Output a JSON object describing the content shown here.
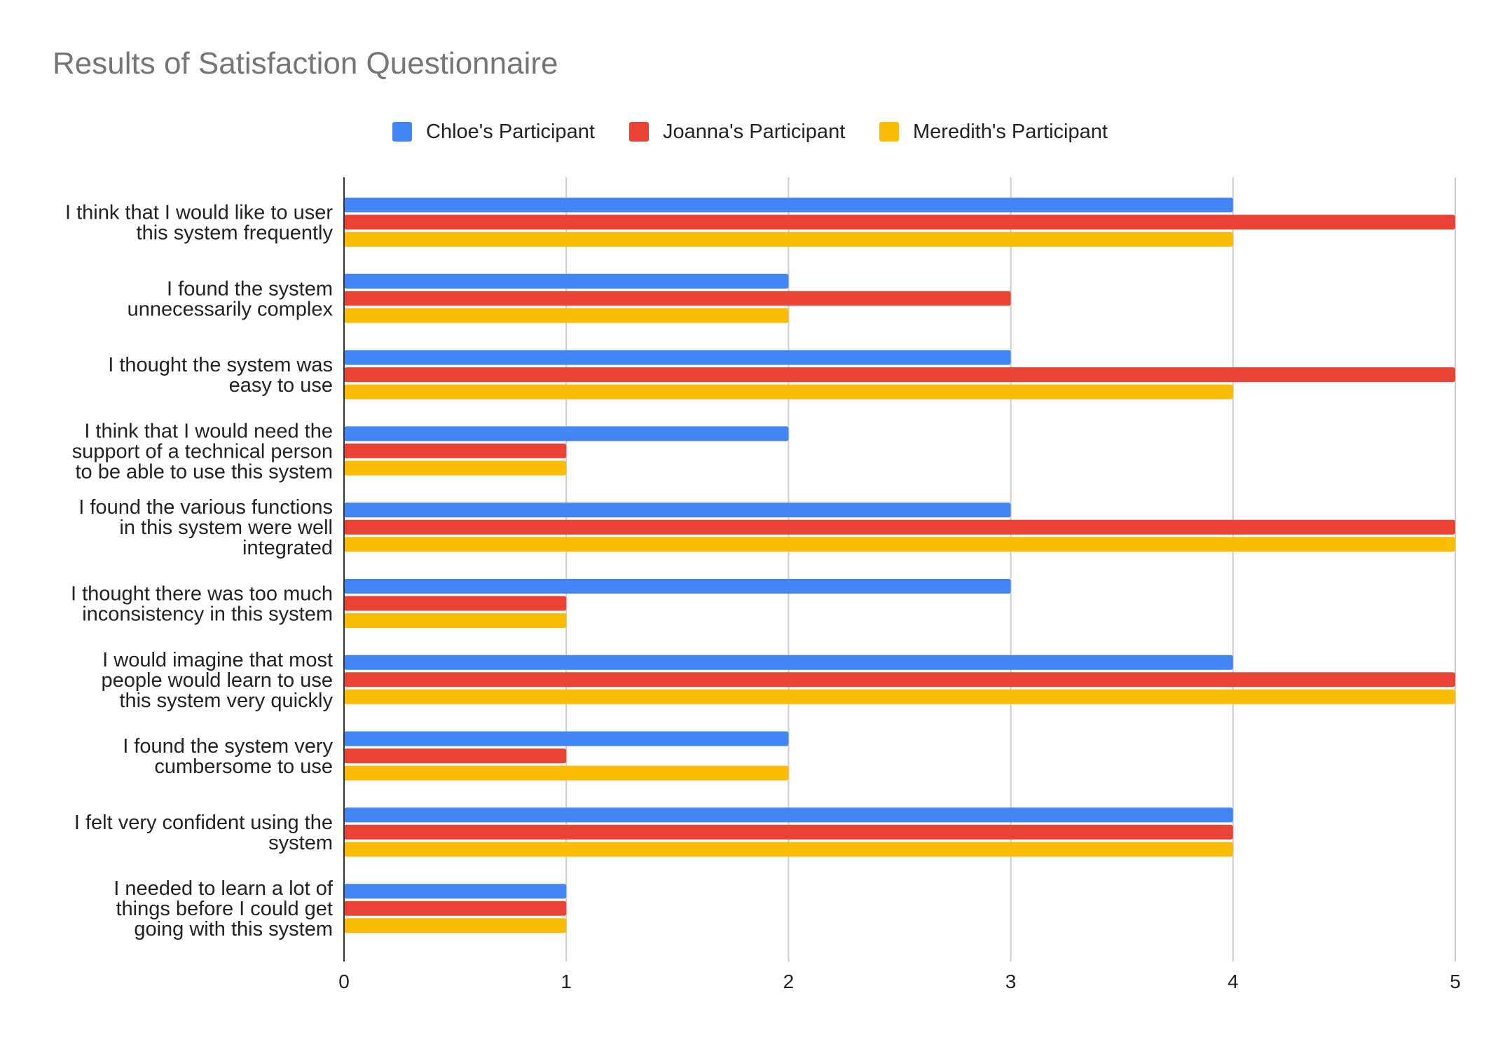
{
  "chart_data": {
    "type": "bar",
    "orientation": "horizontal",
    "title": "Results of Satisfaction Questionnaire",
    "xlabel": "",
    "ylabel": "",
    "xlim": [
      0,
      5
    ],
    "xticks": [
      "0",
      "1",
      "2",
      "3",
      "4",
      "5"
    ],
    "grid": "vertical",
    "legend_position": "top",
    "categories": [
      [
        "I think that I would like to user",
        "this system frequently"
      ],
      [
        "I found the system",
        "unnecessarily complex"
      ],
      [
        "I thought the system was",
        "easy to use"
      ],
      [
        "I think that I would need the",
        "support of a technical person",
        "to be able to use this system"
      ],
      [
        "I found the various functions",
        "in this system were well",
        "integrated"
      ],
      [
        "I thought there was too much",
        "inconsistency in this system"
      ],
      [
        "I would imagine that most",
        "people would learn to use",
        "this system very quickly"
      ],
      [
        "I found the system very",
        "cumbersome to use"
      ],
      [
        "I felt very confident using the",
        "system"
      ],
      [
        "I needed to learn a lot of",
        "things before I could get",
        "going with this system"
      ]
    ],
    "series": [
      {
        "name": "Chloe's Participant",
        "color": "#4285F4",
        "values": [
          4,
          2,
          3,
          2,
          3,
          3,
          4,
          2,
          4,
          1
        ]
      },
      {
        "name": "Joanna's Participant",
        "color": "#EA4335",
        "values": [
          5,
          3,
          5,
          1,
          5,
          1,
          5,
          1,
          4,
          1
        ]
      },
      {
        "name": "Meredith's Participant",
        "color": "#FBBC04",
        "values": [
          4,
          2,
          4,
          1,
          5,
          1,
          5,
          2,
          4,
          1
        ]
      }
    ]
  }
}
